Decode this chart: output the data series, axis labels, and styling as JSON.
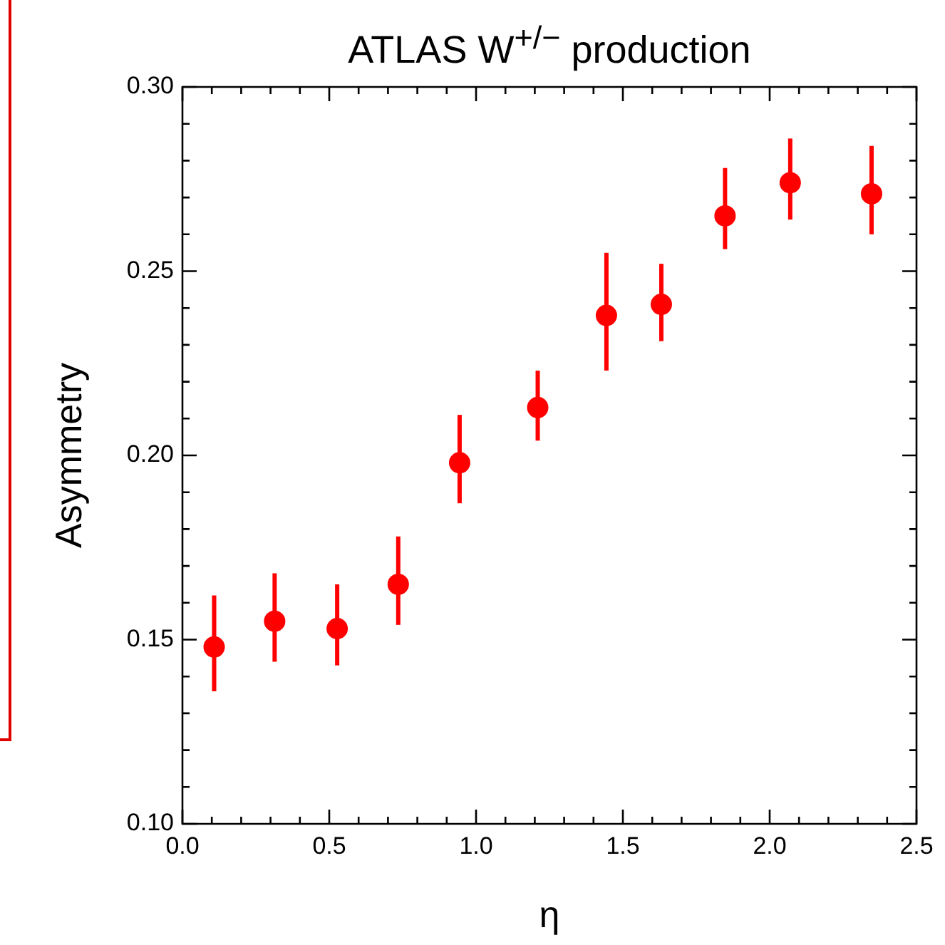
{
  "chart_data": {
    "type": "scatter",
    "title": "ATLAS W$^{+/−}$ production",
    "xlabel": "η",
    "ylabel": "Asymmetry",
    "x": [
      0.108,
      0.314,
      0.527,
      0.735,
      0.944,
      1.21,
      1.444,
      1.631,
      1.848,
      2.07,
      2.347
    ],
    "series": [
      {
        "color": "#ff0000",
        "values": [
          0.148,
          0.155,
          0.153,
          0.165,
          0.198,
          0.213,
          0.238,
          0.241,
          0.265,
          0.274,
          0.271
        ],
        "errors": [
          [
            0.136,
            0.162
          ],
          [
            0.144,
            0.168
          ],
          [
            0.143,
            0.165
          ],
          [
            0.154,
            0.178
          ],
          [
            0.187,
            0.211
          ],
          [
            0.204,
            0.223
          ],
          [
            0.223,
            0.255
          ],
          [
            0.231,
            0.252
          ],
          [
            0.256,
            0.278
          ],
          [
            0.264,
            0.286
          ],
          [
            0.26,
            0.284
          ]
        ]
      }
    ],
    "marker": "circle",
    "legend": false,
    "grid": false,
    "xlim": [
      0,
      2.5
    ],
    "ylim": [
      0.1,
      0.3
    ],
    "xticks": [
      {
        "value": 0,
        "label": "0.0"
      },
      {
        "value": 0.1,
        "label": null
      },
      {
        "value": 0.2,
        "label": null
      },
      {
        "value": 0.3,
        "label": null
      },
      {
        "value": 0.4,
        "label": null
      },
      {
        "value": 0.5,
        "label": "0.5"
      },
      {
        "value": 0.6,
        "label": null
      },
      {
        "value": 0.7,
        "label": null
      },
      {
        "value": 0.8,
        "label": null
      },
      {
        "value": 0.9,
        "label": null
      },
      {
        "value": 1,
        "label": "1.0"
      },
      {
        "value": 1.1,
        "label": null
      },
      {
        "value": 1.2,
        "label": null
      },
      {
        "value": 1.3,
        "label": null
      },
      {
        "value": 1.4,
        "label": null
      },
      {
        "value": 1.5,
        "label": "1.5"
      },
      {
        "value": 1.6,
        "label": null
      },
      {
        "value": 1.7,
        "label": null
      },
      {
        "value": 1.8,
        "label": null
      },
      {
        "value": 1.9,
        "label": null
      },
      {
        "value": 2,
        "label": "2.0"
      },
      {
        "value": 2.1,
        "label": null
      },
      {
        "value": 2.2,
        "label": null
      },
      {
        "value": 2.3,
        "label": null
      },
      {
        "value": 2.4,
        "label": null
      },
      {
        "value": 2.5,
        "label": "2.5"
      }
    ],
    "yticks": [
      {
        "value": 0.1,
        "label": "0.10"
      },
      {
        "value": 0.11,
        "label": null
      },
      {
        "value": 0.12,
        "label": null
      },
      {
        "value": 0.13,
        "label": null
      },
      {
        "value": 0.14,
        "label": null
      },
      {
        "value": 0.15,
        "label": "0.15"
      },
      {
        "value": 0.16,
        "label": null
      },
      {
        "value": 0.17,
        "label": null
      },
      {
        "value": 0.18,
        "label": null
      },
      {
        "value": 0.19,
        "label": null
      },
      {
        "value": 0.2,
        "label": "0.20"
      },
      {
        "value": 0.21,
        "label": null
      },
      {
        "value": 0.22,
        "label": null
      },
      {
        "value": 0.23,
        "label": null
      },
      {
        "value": 0.24,
        "label": null
      },
      {
        "value": 0.25,
        "label": "0.25"
      },
      {
        "value": 0.26,
        "label": null
      },
      {
        "value": 0.27,
        "label": null
      },
      {
        "value": 0.28,
        "label": null
      },
      {
        "value": 0.29,
        "label": null
      },
      {
        "value": 0.3,
        "label": "0.30"
      }
    ]
  }
}
